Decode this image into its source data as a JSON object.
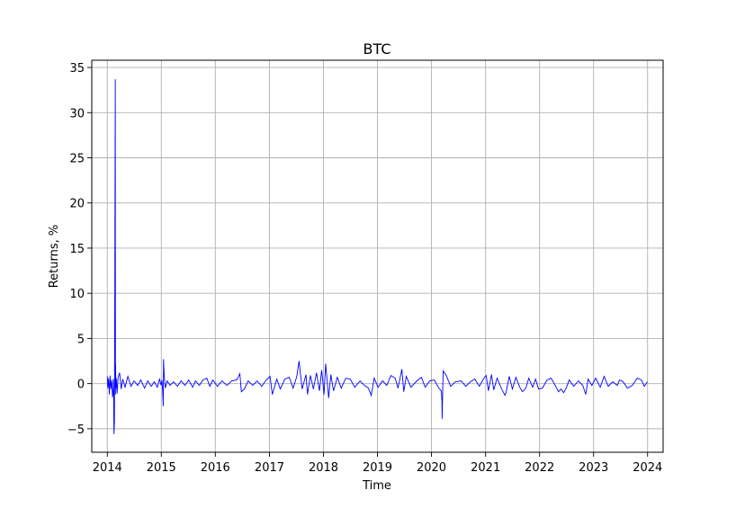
{
  "chart_data": {
    "type": "line",
    "title": "BTC",
    "xlabel": "Time",
    "ylabel": "Returns, %",
    "x_ticks": [
      "2014",
      "2015",
      "2016",
      "2017",
      "2018",
      "2019",
      "2020",
      "2021",
      "2022",
      "2023",
      "2024"
    ],
    "y_ticks": [
      "35",
      "30",
      "25",
      "20",
      "15",
      "10",
      "5",
      "0",
      "−5"
    ],
    "xlim": [
      "2013-09-18",
      "2024-04-15"
    ],
    "ylim": [
      -7.6,
      35.8
    ],
    "grid": true,
    "series": [
      {
        "color": "#0000ff",
        "x": [
          "2014-01-01",
          "2014-01-05",
          "2014-01-10",
          "2014-01-15",
          "2014-01-20",
          "2014-01-25",
          "2014-01-31",
          "2014-02-05",
          "2014-02-09",
          "2014-02-12",
          "2014-02-15",
          "2014-02-18",
          "2014-02-21",
          "2014-02-24",
          "2014-02-25",
          "2014-02-26",
          "2014-02-28",
          "2014-03-03",
          "2014-03-08",
          "2014-03-15",
          "2014-03-25",
          "2014-04-05",
          "2014-04-15",
          "2014-05-01",
          "2014-05-20",
          "2014-06-10",
          "2014-07-01",
          "2014-07-25",
          "2014-08-15",
          "2014-09-10",
          "2014-10-01",
          "2014-10-25",
          "2014-11-15",
          "2014-12-05",
          "2014-12-20",
          "2014-12-31",
          "2015-01-05",
          "2015-01-10",
          "2015-01-14",
          "2015-01-16",
          "2015-01-20",
          "2015-01-28",
          "2015-02-10",
          "2015-03-01",
          "2015-03-25",
          "2015-04-20",
          "2015-05-15",
          "2015-06-10",
          "2015-07-05",
          "2015-08-01",
          "2015-08-20",
          "2015-09-15",
          "2015-10-10",
          "2015-11-05",
          "2015-11-25",
          "2015-12-15",
          "2016-01-15",
          "2016-02-15",
          "2016-03-20",
          "2016-04-20",
          "2016-05-25",
          "2016-06-15",
          "2016-06-25",
          "2016-07-15",
          "2016-08-10",
          "2016-09-10",
          "2016-10-10",
          "2016-11-10",
          "2016-12-10",
          "2017-01-05",
          "2017-01-20",
          "2017-02-20",
          "2017-03-15",
          "2017-04-15",
          "2017-05-15",
          "2017-06-10",
          "2017-07-05",
          "2017-07-20",
          "2017-08-10",
          "2017-09-05",
          "2017-09-15",
          "2017-10-05",
          "2017-10-25",
          "2017-11-15",
          "2017-12-05",
          "2017-12-20",
          "2018-01-05",
          "2018-01-16",
          "2018-02-05",
          "2018-02-20",
          "2018-03-10",
          "2018-04-05",
          "2018-05-01",
          "2018-06-01",
          "2018-07-01",
          "2018-08-01",
          "2018-09-05",
          "2018-10-05",
          "2018-11-01",
          "2018-11-20",
          "2018-12-10",
          "2019-01-05",
          "2019-02-05",
          "2019-03-05",
          "2019-04-02",
          "2019-05-01",
          "2019-05-20",
          "2019-06-15",
          "2019-06-28",
          "2019-07-15",
          "2019-08-15",
          "2019-09-25",
          "2019-10-25",
          "2019-11-20",
          "2019-12-20",
          "2020-01-20",
          "2020-02-20",
          "2020-03-08",
          "2020-03-12",
          "2020-03-13",
          "2020-03-20",
          "2020-04-10",
          "2020-05-10",
          "2020-06-10",
          "2020-07-20",
          "2020-08-20",
          "2020-09-20",
          "2020-10-20",
          "2020-11-20",
          "2020-12-20",
          "2021-01-05",
          "2021-01-20",
          "2021-02-10",
          "2021-02-25",
          "2021-03-20",
          "2021-04-20",
          "2021-05-12",
          "2021-05-19",
          "2021-06-10",
          "2021-07-01",
          "2021-07-25",
          "2021-08-20",
          "2021-09-07",
          "2021-09-30",
          "2021-10-20",
          "2021-11-15",
          "2021-12-05",
          "2021-12-25",
          "2022-01-20",
          "2022-02-20",
          "2022-03-20",
          "2022-04-20",
          "2022-05-09",
          "2022-05-25",
          "2022-06-13",
          "2022-06-30",
          "2022-07-20",
          "2022-08-20",
          "2022-09-20",
          "2022-10-20",
          "2022-11-09",
          "2022-11-25",
          "2022-12-20",
          "2023-01-15",
          "2023-02-15",
          "2023-03-13",
          "2023-04-10",
          "2023-05-10",
          "2023-06-10",
          "2023-06-25",
          "2023-07-20",
          "2023-08-17",
          "2023-09-20",
          "2023-10-23",
          "2023-11-20",
          "2023-12-10",
          "2023-12-31"
        ],
        "y": [
          0.8,
          -0.5,
          0.6,
          -1.2,
          0.9,
          -0.6,
          0.4,
          -1.5,
          -0.8,
          0.5,
          -5.6,
          -4.3,
          12.8,
          33.7,
          -1.2,
          2.2,
          -0.5,
          0.6,
          -1.1,
          0.7,
          1.2,
          -0.6,
          0.5,
          -0.4,
          0.8,
          -0.3,
          0.3,
          -0.2,
          0.4,
          -0.5,
          0.3,
          -0.3,
          0.2,
          -0.4,
          0.5,
          -0.2,
          0.4,
          -0.8,
          -2.5,
          2.7,
          1.1,
          -0.5,
          0.3,
          -0.2,
          0.2,
          -0.3,
          0.3,
          -0.2,
          0.4,
          -0.4,
          0.3,
          -0.2,
          0.4,
          0.6,
          -0.3,
          0.4,
          -0.3,
          0.3,
          -0.2,
          0.3,
          0.4,
          1.1,
          -0.9,
          -0.6,
          0.3,
          -0.2,
          0.3,
          -0.3,
          0.4,
          0.8,
          -1.2,
          0.5,
          -0.6,
          0.5,
          0.7,
          -0.5,
          0.8,
          2.5,
          -0.6,
          1.0,
          -1.2,
          0.9,
          -0.6,
          1.2,
          -0.8,
          1.5,
          -1.2,
          2.2,
          -1.6,
          1.0,
          -0.8,
          0.7,
          -0.5,
          0.6,
          0.5,
          -0.4,
          0.3,
          -0.2,
          -0.5,
          -1.3,
          0.6,
          -0.4,
          0.3,
          -0.2,
          0.9,
          0.6,
          -0.5,
          1.6,
          -0.9,
          0.8,
          -0.4,
          0.3,
          0.7,
          -0.4,
          0.3,
          0.4,
          -0.5,
          -0.8,
          -2.0,
          -3.9,
          1.4,
          0.9,
          -0.3,
          0.2,
          0.3,
          -0.3,
          0.2,
          0.5,
          -0.3,
          0.6,
          0.9,
          -0.8,
          1.0,
          -0.7,
          0.6,
          -0.6,
          -1.3,
          -1.0,
          0.8,
          -0.6,
          0.7,
          -0.4,
          -0.9,
          -0.5,
          0.6,
          -0.4,
          0.5,
          -0.6,
          -0.5,
          0.4,
          0.6,
          -0.3,
          -0.9,
          -0.6,
          -1.0,
          -0.5,
          0.4,
          -0.3,
          0.3,
          -0.2,
          -1.2,
          0.5,
          -0.2,
          0.6,
          -0.4,
          0.8,
          -0.3,
          0.2,
          -0.2,
          0.4,
          0.2,
          -0.5,
          -0.2,
          0.6,
          0.4,
          -0.3,
          0.2
        ]
      }
    ]
  }
}
